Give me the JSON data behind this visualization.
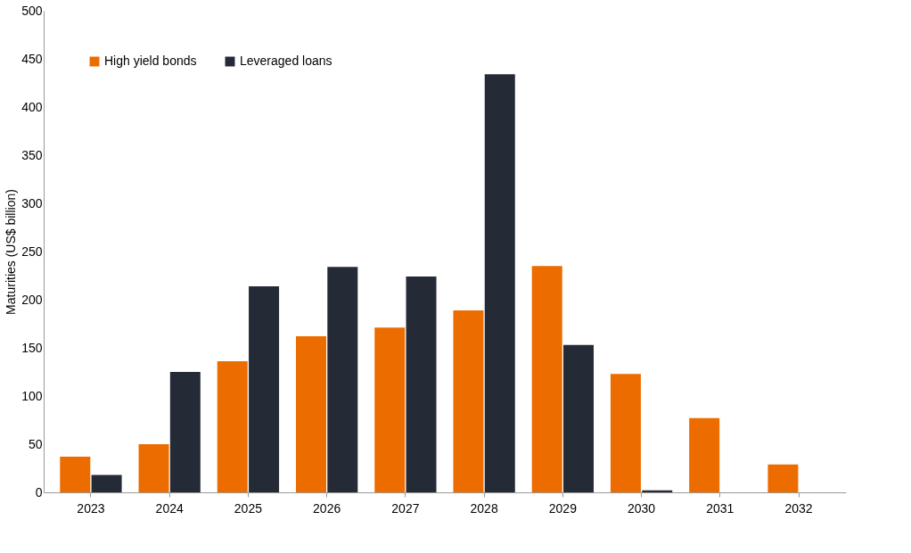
{
  "chart_data": {
    "type": "bar",
    "ylabel": "Maturities (US$ billion)",
    "categories": [
      "2023",
      "2024",
      "2025",
      "2026",
      "2027",
      "2028",
      "2029",
      "2030",
      "2031",
      "2032"
    ],
    "series": [
      {
        "name": "High yield bonds",
        "color": "#ec6c00",
        "values": [
          37,
          50,
          136,
          162,
          171,
          189,
          235,
          123,
          77,
          29
        ]
      },
      {
        "name": "Leveraged loans",
        "color": "#252a37",
        "values": [
          18,
          125,
          214,
          234,
          224,
          434,
          153,
          2,
          null,
          null
        ]
      }
    ],
    "ylim": [
      0,
      500
    ],
    "yticks": [
      0,
      50,
      100,
      150,
      200,
      250,
      300,
      350,
      400,
      450,
      500
    ],
    "grid": false,
    "legend": "top left"
  }
}
